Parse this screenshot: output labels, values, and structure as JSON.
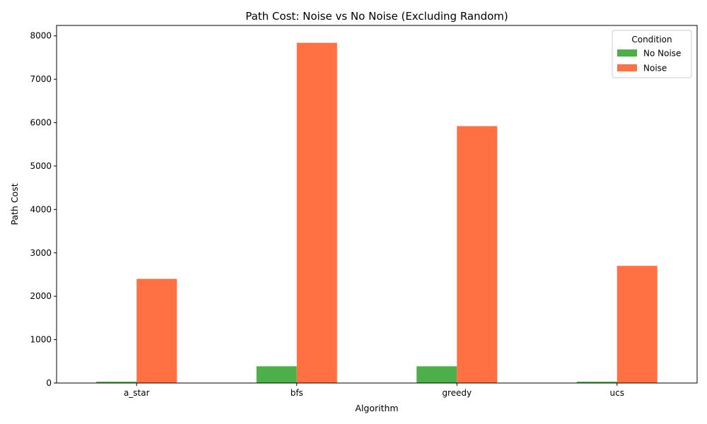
{
  "chart_data": {
    "type": "bar",
    "title": "Path Cost: Noise vs No Noise (Excluding Random)",
    "xlabel": "Algorithm",
    "ylabel": "Path Cost",
    "categories": [
      "a_star",
      "bfs",
      "greedy",
      "ucs"
    ],
    "series": [
      {
        "name": "No Noise",
        "color": "#4daf4a",
        "values": [
          30,
          385,
          385,
          30
        ]
      },
      {
        "name": "Noise",
        "color": "#ff7043",
        "values": [
          2400,
          7840,
          5920,
          2700
        ]
      }
    ],
    "ylim": [
      0,
      8240
    ],
    "yticks": [
      0,
      1000,
      2000,
      3000,
      4000,
      5000,
      6000,
      7000,
      8000
    ],
    "grid": false,
    "legend": {
      "title": "Condition",
      "placement": "top-right"
    }
  }
}
